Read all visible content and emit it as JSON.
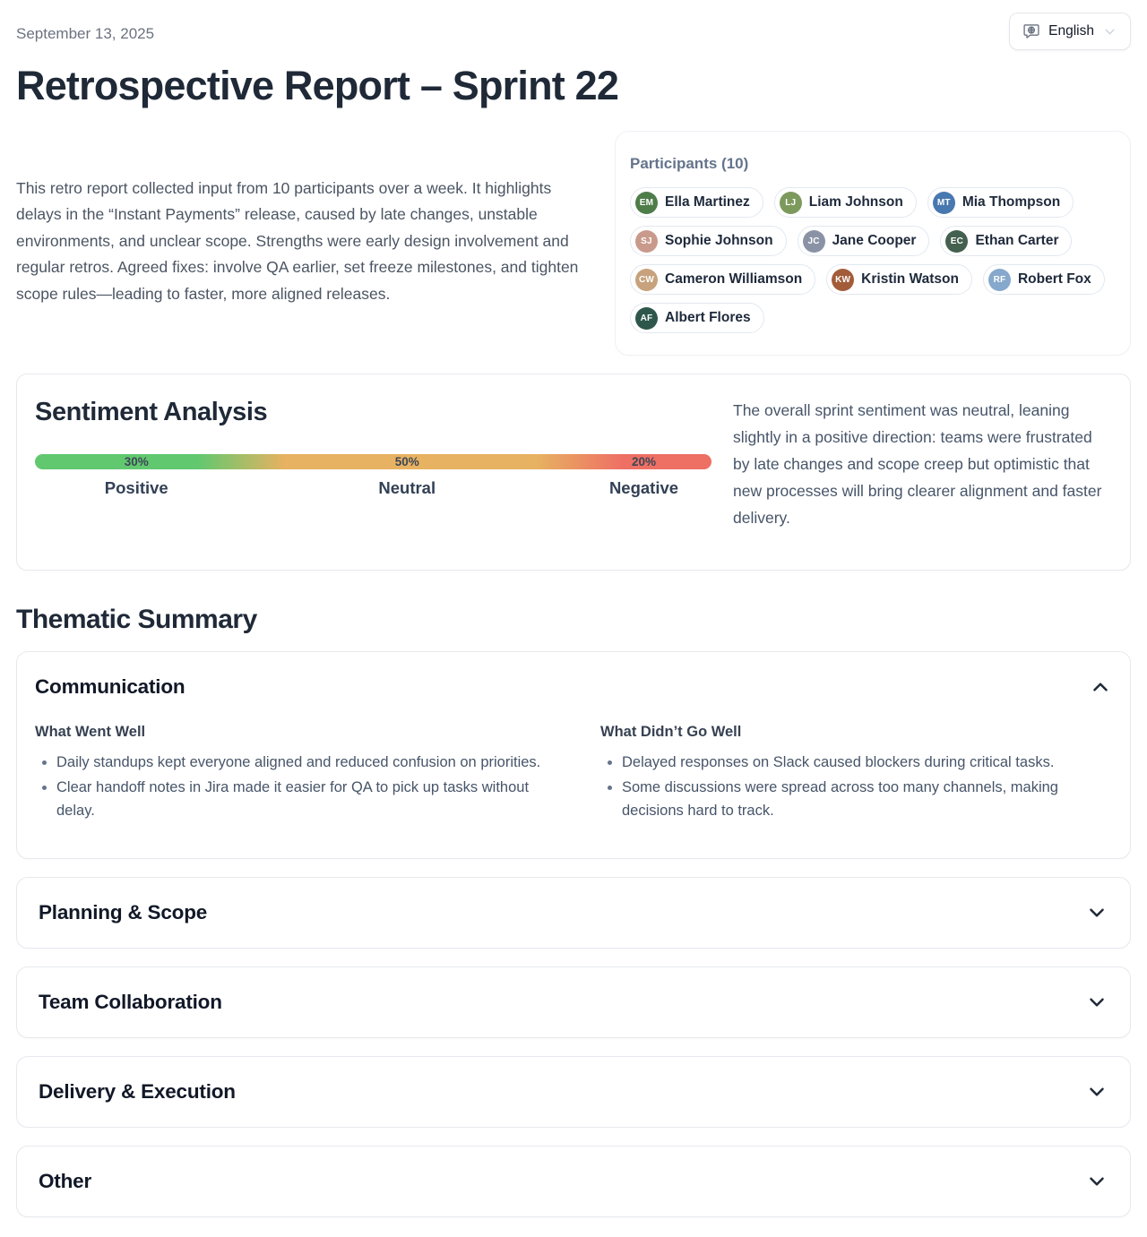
{
  "header": {
    "date": "September 13, 2025",
    "title": "Retrospective Report – Sprint 22",
    "language_selector": {
      "value": "English"
    }
  },
  "intro": {
    "text": "This retro report collected input from 10 participants over a week. It highlights delays in the “Instant Payments” release, caused by late changes, unstable environments, and unclear scope. Strengths were early design involvement and regular retros. Agreed fixes: involve QA earlier, set freeze milestones, and tighten scope rules—leading to faster, more aligned releases."
  },
  "participants": {
    "title": "Participants (10)",
    "items": [
      {
        "name": "Ella Martinez",
        "initials": "EM",
        "color": "#4e7d4a"
      },
      {
        "name": "Liam Johnson",
        "initials": "LJ",
        "color": "#7d9a5d"
      },
      {
        "name": "Mia Thompson",
        "initials": "MT",
        "color": "#4878b0"
      },
      {
        "name": "Sophie Johnson",
        "initials": "SJ",
        "color": "#c99a8c"
      },
      {
        "name": "Jane Cooper",
        "initials": "JC",
        "color": "#8a93a6"
      },
      {
        "name": "Ethan Carter",
        "initials": "EC",
        "color": "#44604f"
      },
      {
        "name": "Cameron Williamson",
        "initials": "CW",
        "color": "#c7a27c"
      },
      {
        "name": "Kristin Watson",
        "initials": "KW",
        "color": "#a35c3a"
      },
      {
        "name": "Robert Fox",
        "initials": "RF",
        "color": "#86a8cc"
      },
      {
        "name": "Albert Flores",
        "initials": "AF",
        "color": "#2e564b"
      }
    ]
  },
  "sentiment": {
    "title": "Sentiment Analysis",
    "summary": "The overall sprint sentiment was neutral, leaning slightly in a positive direction: teams were frustrated by late changes and scope creep but optimistic that new processes will bring clearer alignment and faster delivery.",
    "segments": [
      {
        "label": "Positive",
        "percent_label": "30%",
        "value": 30,
        "color": "#61c86f"
      },
      {
        "label": "Neutral",
        "percent_label": "50%",
        "value": 50,
        "color": "#e7b261"
      },
      {
        "label": "Negative",
        "percent_label": "20%",
        "value": 20,
        "color": "#ee6f64"
      }
    ]
  },
  "thematic": {
    "title": "Thematic Summary",
    "sections": [
      {
        "title": "Communication",
        "expanded": true,
        "columns": [
          {
            "title": "What Went Well",
            "bullets": [
              "Daily standups kept everyone aligned and reduced confusion on priorities.",
              "Clear handoff notes in Jira made it easier for QA to pick up tasks without delay."
            ]
          },
          {
            "title": "What Didn’t Go Well",
            "bullets": [
              "Delayed responses on Slack caused blockers during critical tasks.",
              "Some discussions were spread across too many channels, making decisions hard to track."
            ]
          }
        ]
      },
      {
        "title": "Planning & Scope",
        "expanded": false
      },
      {
        "title": "Team Collaboration",
        "expanded": false
      },
      {
        "title": "Delivery & Execution",
        "expanded": false
      },
      {
        "title": "Other",
        "expanded": false
      }
    ]
  }
}
